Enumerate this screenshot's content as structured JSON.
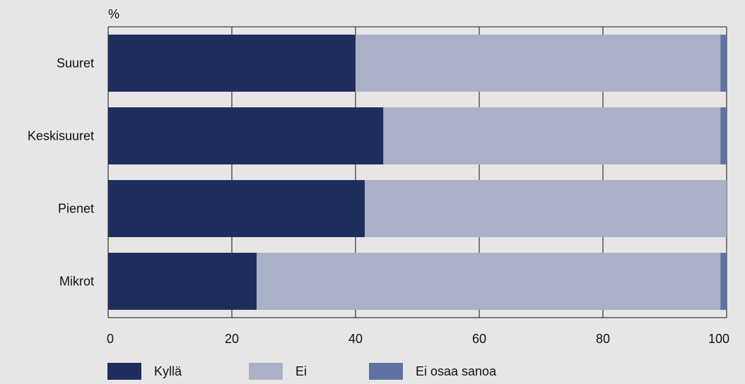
{
  "chart_data": {
    "type": "bar",
    "orientation": "horizontal",
    "stacked": true,
    "y_unit_label": "%",
    "categories": [
      "Suuret",
      "Keskisuuret",
      "Pienet",
      "Mikrot"
    ],
    "series": [
      {
        "name": "Kyllä",
        "color": "#1f2d5c",
        "values": [
          40,
          44.5,
          41.5,
          24
        ]
      },
      {
        "name": "Ei",
        "color": "#aab0c6",
        "values": [
          59,
          54.5,
          58.5,
          75
        ]
      },
      {
        "name": "Ei osaa sanoa",
        "color": "#5f72a3",
        "values": [
          1,
          1,
          0,
          1
        ]
      }
    ],
    "xlim": [
      0,
      100
    ],
    "xticks": [
      0,
      20,
      40,
      60,
      80,
      100
    ],
    "grid": true,
    "legend_position": "bottom"
  }
}
